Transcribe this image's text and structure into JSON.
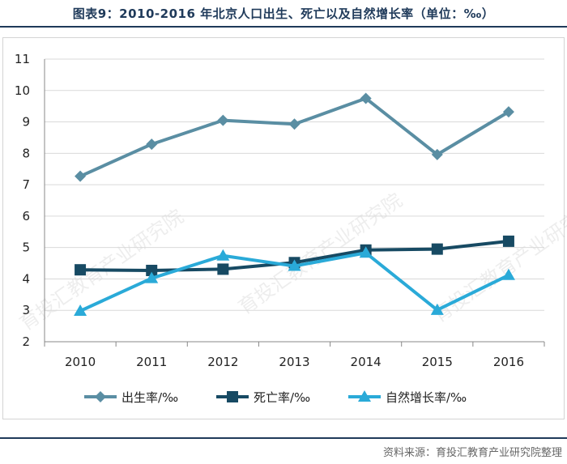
{
  "title": "图表9：2010-2016 年北京人口出生、死亡以及自然增长率（单位：‰）",
  "source": "资料来源：育投汇教育产业研究院整理",
  "watermark": "育投汇教育产业研究院",
  "chart_data": {
    "type": "line",
    "title": "图表9：2010-2016 年北京人口出生、死亡以及自然增长率（单位：‰）",
    "xlabel": "",
    "ylabel": "",
    "categories": [
      "2010",
      "2011",
      "2012",
      "2013",
      "2014",
      "2015",
      "2016"
    ],
    "ylim": [
      2,
      11
    ],
    "yticks": [
      2,
      3,
      4,
      5,
      6,
      7,
      8,
      9,
      10,
      11
    ],
    "grid": true,
    "legend_position": "bottom",
    "series": [
      {
        "name": "出生率/‰",
        "values": [
          7.27,
          8.29,
          9.05,
          8.93,
          9.75,
          7.96,
          9.32
        ],
        "color": "#5a8ea3",
        "marker": "diamond"
      },
      {
        "name": "死亡率/‰",
        "values": [
          4.29,
          4.27,
          4.31,
          4.52,
          4.92,
          4.95,
          5.2
        ],
        "color": "#174a63",
        "marker": "square"
      },
      {
        "name": "自然增长率/‰",
        "values": [
          2.98,
          4.02,
          4.74,
          4.41,
          4.83,
          3.01,
          4.12
        ],
        "color": "#2aaad8",
        "marker": "triangle"
      }
    ]
  }
}
